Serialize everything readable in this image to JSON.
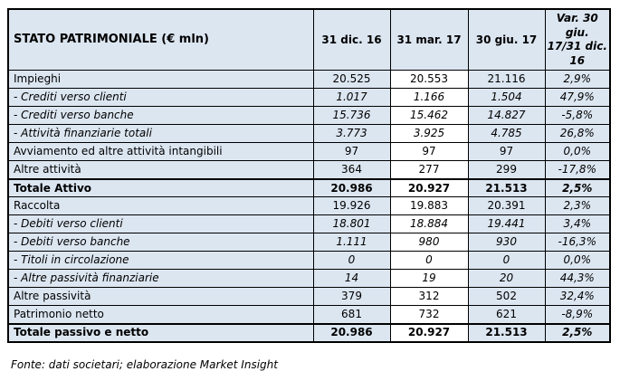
{
  "table": {
    "title": "STATO PATRIMONIALE (€ mln)",
    "columns": [
      "31 dic. 16",
      "31 mar. 17",
      "30 giu. 17",
      "Var. 30 giu. 17/31 dic. 16"
    ],
    "rows": [
      {
        "label": "Impieghi",
        "style": "normal",
        "values": [
          "20.525",
          "20.553",
          "21.116",
          "2,9%"
        ]
      },
      {
        "label": "- Crediti verso clienti",
        "style": "sub",
        "values": [
          "1.017",
          "1.166",
          "1.504",
          "47,9%"
        ]
      },
      {
        "label": "- Crediti verso banche",
        "style": "sub",
        "values": [
          "15.736",
          "15.462",
          "14.827",
          "-5,8%"
        ]
      },
      {
        "label": "- Attività finanziarie totali",
        "style": "sub",
        "values": [
          "3.773",
          "3.925",
          "4.785",
          "26,8%"
        ]
      },
      {
        "label": "Avviamento ed altre attività intangibili",
        "style": "normal",
        "values": [
          "97",
          "97",
          "97",
          "0,0%"
        ]
      },
      {
        "label": "Altre attività",
        "style": "normal",
        "values": [
          "364",
          "277",
          "299",
          "-17,8%"
        ]
      },
      {
        "label": "Totale Attivo",
        "style": "total",
        "values": [
          "20.986",
          "20.927",
          "21.513",
          "2,5%"
        ]
      },
      {
        "label": "Raccolta",
        "style": "normal",
        "values": [
          "19.926",
          "19.883",
          "20.391",
          "2,3%"
        ]
      },
      {
        "label": "- Debiti verso clienti",
        "style": "sub",
        "values": [
          "18.801",
          "18.884",
          "19.441",
          "3,4%"
        ]
      },
      {
        "label": "- Debiti verso banche",
        "style": "sub",
        "values": [
          "1.111",
          "980",
          "930",
          "-16,3%"
        ]
      },
      {
        "label": "- Titoli in circolazione",
        "style": "sub",
        "values": [
          "0",
          "0",
          "0",
          "0,0%"
        ]
      },
      {
        "label": "- Altre passività finanziarie",
        "style": "sub",
        "values": [
          "14",
          "19",
          "20",
          "44,3%"
        ]
      },
      {
        "label": "Altre passività",
        "style": "normal",
        "values": [
          "379",
          "312",
          "502",
          "32,4%"
        ]
      },
      {
        "label": "Patrimonio netto",
        "style": "normal",
        "values": [
          "681",
          "732",
          "621",
          "-8,9%"
        ]
      },
      {
        "label": "Totale passivo e netto",
        "style": "total",
        "values": [
          "20.986",
          "20.927",
          "21.513",
          "2,5%"
        ]
      }
    ]
  },
  "footer": {
    "source_note": "Fonte: dati societari; elaborazione Market Insight"
  },
  "colors": {
    "cell_fill": "#dce6f1",
    "highlight_column_fill": "#ffffff",
    "border": "#000000",
    "text": "#000000"
  }
}
